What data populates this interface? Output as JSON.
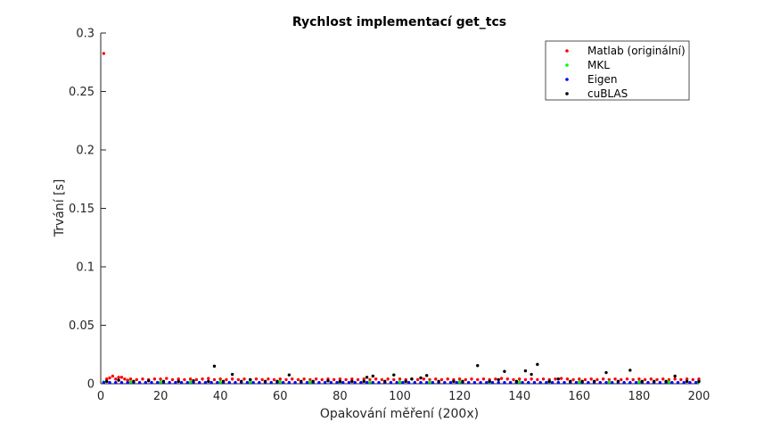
{
  "chart_data": {
    "type": "scatter",
    "title": "Rychlost implementací get_tcs",
    "xlabel": "Opakování měření (200x)",
    "ylabel": "Trvání [s]",
    "xlim": [
      0,
      200
    ],
    "ylim": [
      0,
      0.3
    ],
    "xticks": [
      0,
      20,
      40,
      60,
      80,
      100,
      120,
      140,
      160,
      180,
      200
    ],
    "yticks": [
      0,
      0.05,
      0.1,
      0.15,
      0.2,
      0.25,
      0.3
    ],
    "ytick_labels": [
      "0",
      "0.05",
      "0.1",
      "0.15",
      "0.2",
      "0.25",
      "0.3"
    ],
    "grid": false,
    "legend_position": "top-right",
    "series": [
      {
        "name": "Matlab (originální)",
        "color": "#ff0000",
        "points": [
          [
            1,
            0.2825
          ],
          [
            2,
            0.004
          ],
          [
            3,
            0.005
          ],
          [
            4,
            0.0065
          ],
          [
            5,
            0.004
          ],
          [
            6,
            0.0055
          ],
          [
            7,
            0.0055
          ],
          [
            8,
            0.004
          ],
          [
            9,
            0.003
          ],
          [
            10,
            0.004
          ],
          [
            12,
            0.0035
          ],
          [
            14,
            0.004
          ],
          [
            16,
            0.0035
          ],
          [
            18,
            0.004
          ],
          [
            20,
            0.004
          ],
          [
            22,
            0.0045
          ],
          [
            24,
            0.0035
          ],
          [
            26,
            0.004
          ],
          [
            28,
            0.0035
          ],
          [
            30,
            0.004
          ],
          [
            32,
            0.0035
          ],
          [
            34,
            0.004
          ],
          [
            36,
            0.0045
          ],
          [
            38,
            0.0035
          ],
          [
            40,
            0.004
          ],
          [
            42,
            0.0035
          ],
          [
            44,
            0.004
          ],
          [
            46,
            0.0035
          ],
          [
            48,
            0.004
          ],
          [
            50,
            0.0035
          ],
          [
            52,
            0.004
          ],
          [
            54,
            0.0035
          ],
          [
            56,
            0.004
          ],
          [
            58,
            0.0035
          ],
          [
            60,
            0.004
          ],
          [
            62,
            0.0035
          ],
          [
            64,
            0.004
          ],
          [
            66,
            0.0035
          ],
          [
            68,
            0.004
          ],
          [
            70,
            0.0035
          ],
          [
            72,
            0.004
          ],
          [
            74,
            0.0035
          ],
          [
            76,
            0.004
          ],
          [
            78,
            0.0035
          ],
          [
            80,
            0.004
          ],
          [
            82,
            0.0035
          ],
          [
            84,
            0.004
          ],
          [
            86,
            0.0035
          ],
          [
            88,
            0.004
          ],
          [
            90,
            0.0035
          ],
          [
            92,
            0.004
          ],
          [
            94,
            0.0035
          ],
          [
            96,
            0.004
          ],
          [
            98,
            0.0035
          ],
          [
            100,
            0.004
          ],
          [
            102,
            0.0035
          ],
          [
            104,
            0.004
          ],
          [
            106,
            0.0035
          ],
          [
            108,
            0.004
          ],
          [
            110,
            0.0035
          ],
          [
            112,
            0.004
          ],
          [
            114,
            0.0035
          ],
          [
            116,
            0.004
          ],
          [
            118,
            0.0035
          ],
          [
            120,
            0.004
          ],
          [
            122,
            0.0035
          ],
          [
            124,
            0.004
          ],
          [
            126,
            0.0035
          ],
          [
            128,
            0.004
          ],
          [
            130,
            0.0035
          ],
          [
            132,
            0.004
          ],
          [
            134,
            0.0045
          ],
          [
            136,
            0.004
          ],
          [
            138,
            0.0035
          ],
          [
            140,
            0.004
          ],
          [
            142,
            0.0035
          ],
          [
            144,
            0.004
          ],
          [
            146,
            0.0035
          ],
          [
            148,
            0.004
          ],
          [
            150,
            0.0035
          ],
          [
            152,
            0.004
          ],
          [
            154,
            0.0045
          ],
          [
            156,
            0.004
          ],
          [
            158,
            0.0035
          ],
          [
            160,
            0.004
          ],
          [
            162,
            0.0035
          ],
          [
            164,
            0.004
          ],
          [
            166,
            0.0035
          ],
          [
            168,
            0.004
          ],
          [
            170,
            0.0035
          ],
          [
            172,
            0.004
          ],
          [
            174,
            0.0035
          ],
          [
            176,
            0.004
          ],
          [
            178,
            0.0035
          ],
          [
            180,
            0.004
          ],
          [
            182,
            0.0035
          ],
          [
            184,
            0.004
          ],
          [
            186,
            0.0035
          ],
          [
            188,
            0.004
          ],
          [
            190,
            0.0035
          ],
          [
            192,
            0.004
          ],
          [
            194,
            0.0035
          ],
          [
            196,
            0.004
          ],
          [
            198,
            0.0035
          ],
          [
            200,
            0.004
          ]
        ]
      },
      {
        "name": "MKL",
        "color": "#00ff00",
        "points": [
          [
            1,
            0.0015
          ],
          [
            10,
            0.0015
          ],
          [
            20,
            0.0015
          ],
          [
            30,
            0.0015
          ],
          [
            40,
            0.0015
          ],
          [
            50,
            0.0015
          ],
          [
            60,
            0.0015
          ],
          [
            70,
            0.0015
          ],
          [
            80,
            0.0015
          ],
          [
            90,
            0.0015
          ],
          [
            100,
            0.0015
          ],
          [
            110,
            0.0015
          ],
          [
            120,
            0.0015
          ],
          [
            130,
            0.0015
          ],
          [
            140,
            0.0015
          ],
          [
            150,
            0.0015
          ],
          [
            160,
            0.0015
          ],
          [
            170,
            0.0015
          ],
          [
            180,
            0.0015
          ],
          [
            190,
            0.0015
          ],
          [
            200,
            0.0015
          ]
        ]
      },
      {
        "name": "Eigen",
        "color": "#0000ff",
        "points": [
          [
            1,
            0.001
          ],
          [
            3,
            0.001
          ],
          [
            5,
            0.001
          ],
          [
            7,
            0.001
          ],
          [
            9,
            0.001
          ],
          [
            11,
            0.001
          ],
          [
            13,
            0.001
          ],
          [
            15,
            0.001
          ],
          [
            17,
            0.001
          ],
          [
            19,
            0.001
          ],
          [
            21,
            0.001
          ],
          [
            23,
            0.001
          ],
          [
            25,
            0.001
          ],
          [
            27,
            0.001
          ],
          [
            29,
            0.001
          ],
          [
            31,
            0.001
          ],
          [
            33,
            0.001
          ],
          [
            35,
            0.001
          ],
          [
            37,
            0.001
          ],
          [
            39,
            0.001
          ],
          [
            41,
            0.001
          ],
          [
            43,
            0.001
          ],
          [
            45,
            0.001
          ],
          [
            47,
            0.001
          ],
          [
            49,
            0.001
          ],
          [
            51,
            0.001
          ],
          [
            53,
            0.001
          ],
          [
            55,
            0.001
          ],
          [
            57,
            0.001
          ],
          [
            59,
            0.001
          ],
          [
            61,
            0.001
          ],
          [
            63,
            0.001
          ],
          [
            65,
            0.001
          ],
          [
            67,
            0.001
          ],
          [
            69,
            0.001
          ],
          [
            71,
            0.001
          ],
          [
            73,
            0.001
          ],
          [
            75,
            0.001
          ],
          [
            77,
            0.001
          ],
          [
            79,
            0.001
          ],
          [
            81,
            0.001
          ],
          [
            83,
            0.001
          ],
          [
            85,
            0.001
          ],
          [
            87,
            0.001
          ],
          [
            89,
            0.001
          ],
          [
            91,
            0.001
          ],
          [
            93,
            0.001
          ],
          [
            95,
            0.001
          ],
          [
            97,
            0.001
          ],
          [
            99,
            0.001
          ],
          [
            101,
            0.001
          ],
          [
            103,
            0.001
          ],
          [
            105,
            0.001
          ],
          [
            107,
            0.001
          ],
          [
            109,
            0.001
          ],
          [
            111,
            0.001
          ],
          [
            113,
            0.001
          ],
          [
            115,
            0.001
          ],
          [
            117,
            0.001
          ],
          [
            119,
            0.001
          ],
          [
            121,
            0.001
          ],
          [
            123,
            0.001
          ],
          [
            125,
            0.001
          ],
          [
            127,
            0.001
          ],
          [
            129,
            0.001
          ],
          [
            131,
            0.001
          ],
          [
            133,
            0.001
          ],
          [
            135,
            0.001
          ],
          [
            137,
            0.001
          ],
          [
            139,
            0.001
          ],
          [
            141,
            0.001
          ],
          [
            143,
            0.001
          ],
          [
            145,
            0.001
          ],
          [
            147,
            0.001
          ],
          [
            149,
            0.001
          ],
          [
            151,
            0.001
          ],
          [
            153,
            0.001
          ],
          [
            155,
            0.001
          ],
          [
            157,
            0.001
          ],
          [
            159,
            0.001
          ],
          [
            161,
            0.001
          ],
          [
            163,
            0.001
          ],
          [
            165,
            0.001
          ],
          [
            167,
            0.001
          ],
          [
            169,
            0.001
          ],
          [
            171,
            0.001
          ],
          [
            173,
            0.001
          ],
          [
            175,
            0.001
          ],
          [
            177,
            0.001
          ],
          [
            179,
            0.001
          ],
          [
            181,
            0.001
          ],
          [
            183,
            0.001
          ],
          [
            185,
            0.001
          ],
          [
            187,
            0.001
          ],
          [
            189,
            0.001
          ],
          [
            191,
            0.001
          ],
          [
            193,
            0.001
          ],
          [
            195,
            0.001
          ],
          [
            197,
            0.001
          ],
          [
            199,
            0.001
          ]
        ]
      },
      {
        "name": "cuBLAS",
        "color": "#000000",
        "points": [
          [
            2,
            0.002
          ],
          [
            6,
            0.003
          ],
          [
            11,
            0.002
          ],
          [
            16,
            0.0025
          ],
          [
            21,
            0.002
          ],
          [
            26,
            0.002
          ],
          [
            31,
            0.0025
          ],
          [
            36,
            0.002
          ],
          [
            38,
            0.015
          ],
          [
            41,
            0.002
          ],
          [
            44,
            0.008
          ],
          [
            47,
            0.002
          ],
          [
            50,
            0.0035
          ],
          [
            55,
            0.002
          ],
          [
            59,
            0.002
          ],
          [
            63,
            0.0075
          ],
          [
            67,
            0.002
          ],
          [
            71,
            0.002
          ],
          [
            76,
            0.0025
          ],
          [
            80,
            0.002
          ],
          [
            84,
            0.002
          ],
          [
            88,
            0.002
          ],
          [
            89,
            0.0055
          ],
          [
            91,
            0.0065
          ],
          [
            95,
            0.002
          ],
          [
            98,
            0.0075
          ],
          [
            102,
            0.002
          ],
          [
            104,
            0.004
          ],
          [
            107,
            0.005
          ],
          [
            109,
            0.007
          ],
          [
            113,
            0.002
          ],
          [
            118,
            0.002
          ],
          [
            121,
            0.002
          ],
          [
            126,
            0.0155
          ],
          [
            130,
            0.002
          ],
          [
            133,
            0.0035
          ],
          [
            135,
            0.0105
          ],
          [
            139,
            0.002
          ],
          [
            142,
            0.011
          ],
          [
            144,
            0.008
          ],
          [
            146,
            0.0165
          ],
          [
            150,
            0.002
          ],
          [
            153,
            0.004
          ],
          [
            157,
            0.002
          ],
          [
            161,
            0.002
          ],
          [
            165,
            0.002
          ],
          [
            169,
            0.0095
          ],
          [
            173,
            0.002
          ],
          [
            177,
            0.0115
          ],
          [
            181,
            0.002
          ],
          [
            185,
            0.002
          ],
          [
            189,
            0.002
          ],
          [
            192,
            0.0065
          ],
          [
            196,
            0.002
          ],
          [
            200,
            0.002
          ]
        ]
      }
    ]
  }
}
